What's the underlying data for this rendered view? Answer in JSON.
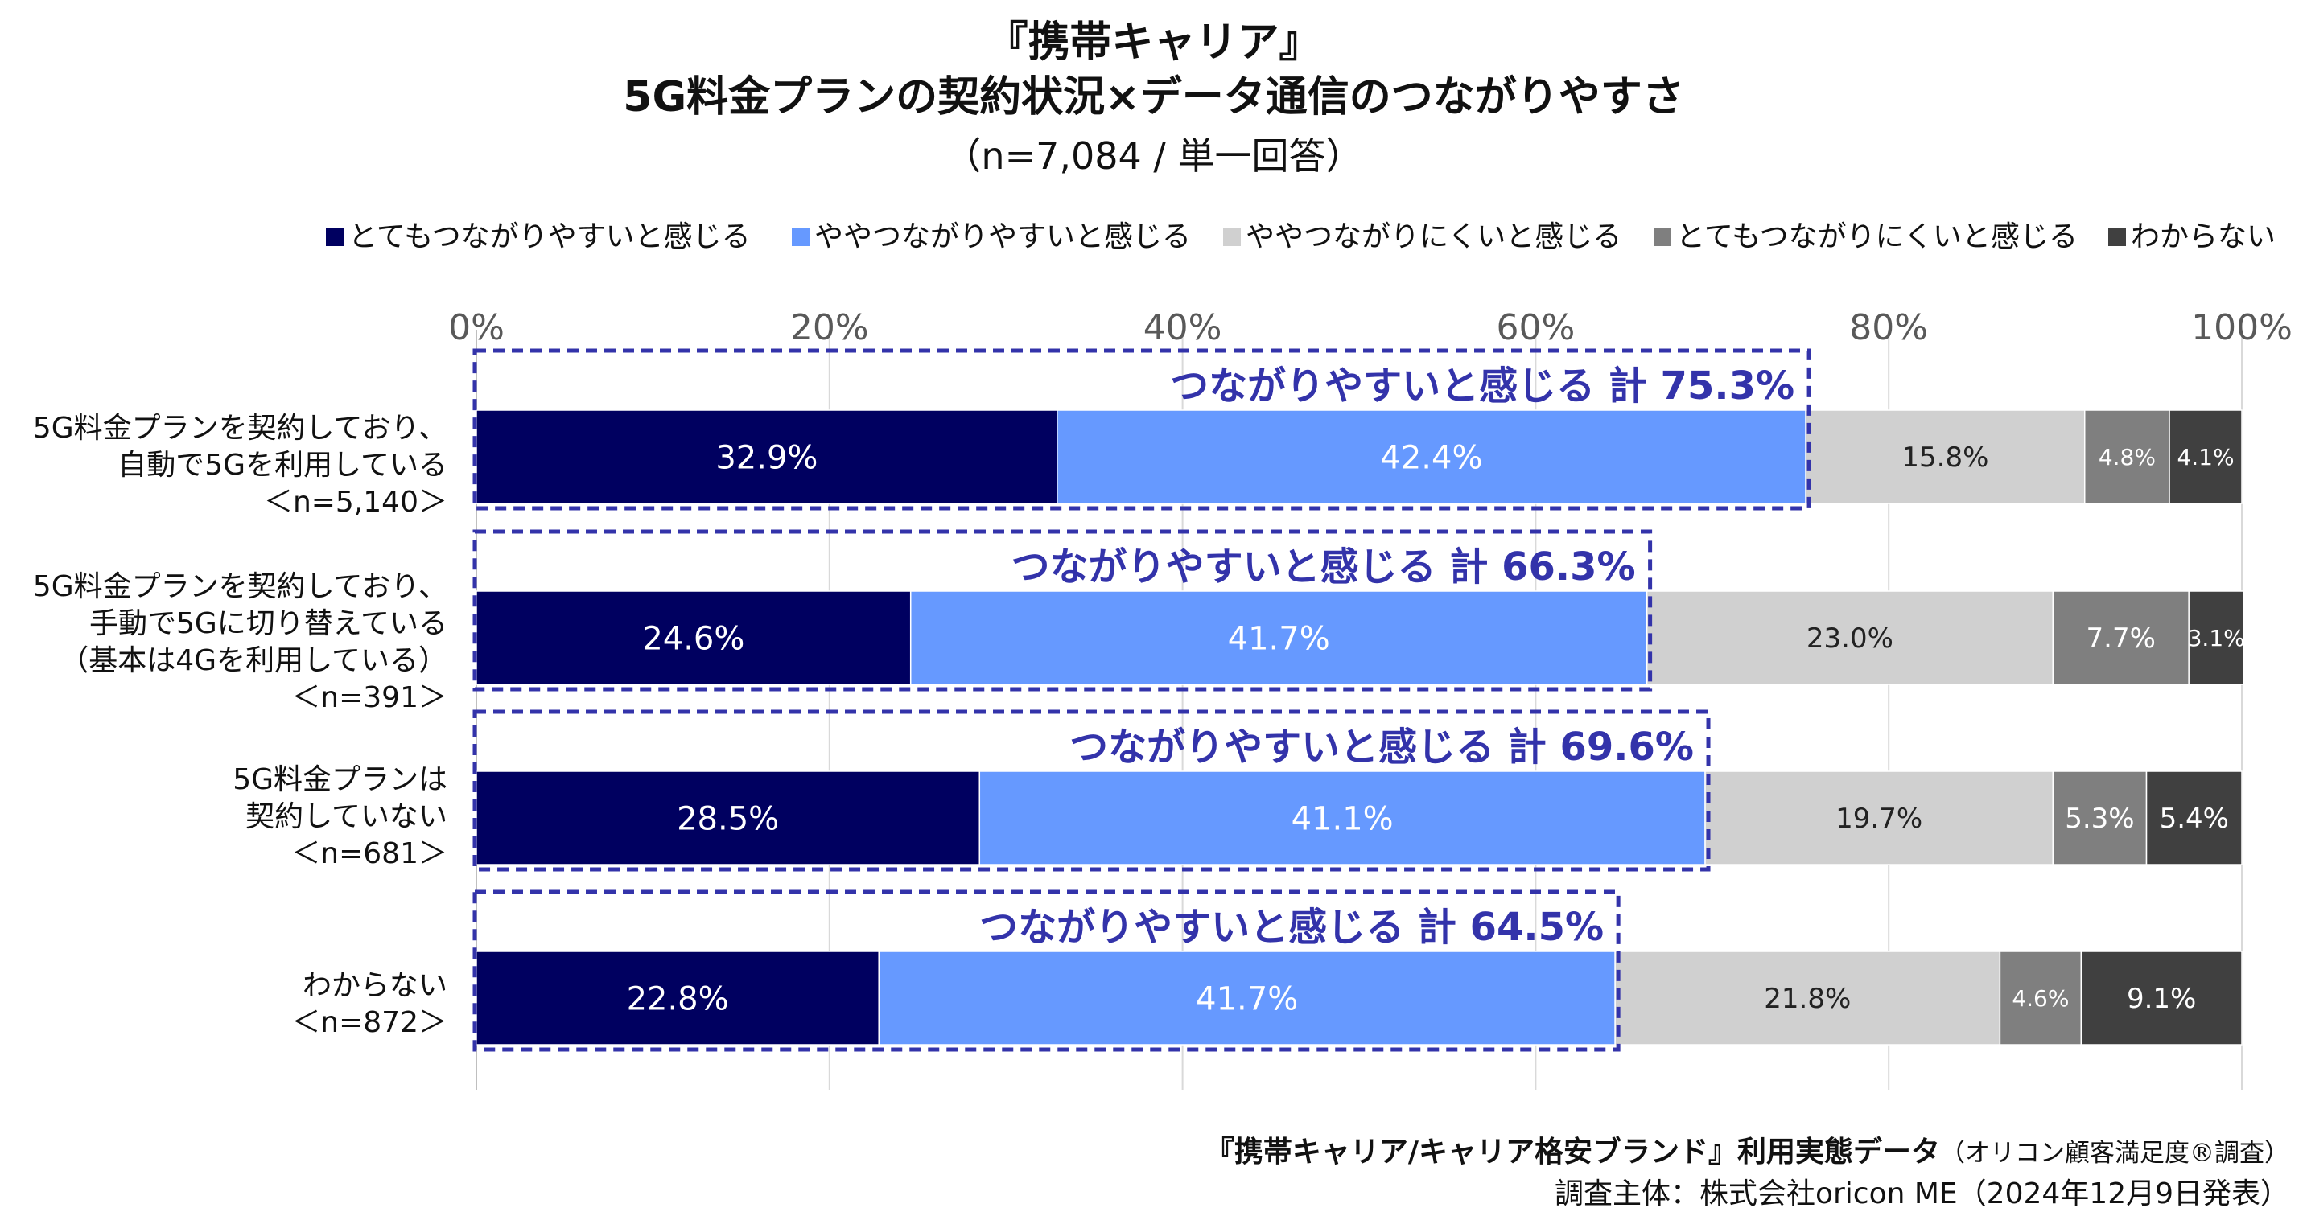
{
  "title": {
    "line1": "『携帯キャリア』",
    "line2": "5G料金プランの契約状況×データ通信のつながりやすさ",
    "line3": "（n=7,084 / 単一回答）"
  },
  "footer": {
    "source_main": "『携帯キャリア/キャリア格安ブランド』利用実態データ",
    "source_sub": "（オリコン顧客満足度®調査）",
    "publisher": "調査主体：株式会社oricon ME（2024年12月9日発表）"
  },
  "colors": {
    "very_easy": "#000060",
    "somewhat_easy": "#6699ff",
    "somewhat_hard": "#d0d0d0",
    "very_hard": "#7f7f7f",
    "unknown": "#404040",
    "highlight": "#3333aa"
  },
  "chart_data": {
    "type": "bar",
    "orientation": "horizontal",
    "stacked": true,
    "xlim": [
      0,
      100
    ],
    "x_ticks": [
      "0%",
      "20%",
      "40%",
      "60%",
      "80%",
      "100%"
    ],
    "grid": true,
    "legend_position": "top",
    "categories": [
      [
        "5G料金プランを契約しており、",
        "自動で5Gを利用している",
        "＜n=5,140＞"
      ],
      [
        "5G料金プランを契約しており、",
        "手動で5Gに切り替えている",
        "（基本は4Gを利用している）",
        "＜n=391＞"
      ],
      [
        "5G料金プランは",
        "契約していない",
        "＜n=681＞"
      ],
      [
        "わからない",
        "＜n=872＞"
      ]
    ],
    "series": [
      {
        "name": "とてもつながりやすいと感じる",
        "values": [
          32.9,
          24.6,
          28.5,
          22.8
        ],
        "labels": [
          "32.9%",
          "24.6%",
          "28.5%",
          "22.8%"
        ]
      },
      {
        "name": "ややつながりやすいと感じる",
        "values": [
          42.4,
          41.7,
          41.1,
          41.7
        ],
        "labels": [
          "42.4%",
          "41.7%",
          "41.1%",
          "41.7%"
        ]
      },
      {
        "name": "ややつながりにくいと感じる",
        "values": [
          15.8,
          23.0,
          19.7,
          21.8
        ],
        "labels": [
          "15.8%",
          "23.0%",
          "19.7%",
          "21.8%"
        ]
      },
      {
        "name": "とてもつながりにくいと感じる",
        "values": [
          4.8,
          7.7,
          5.3,
          4.6
        ],
        "labels": [
          "4.8%",
          "7.7%",
          "5.3%",
          "4.6%"
        ]
      },
      {
        "name": "わからない",
        "values": [
          4.1,
          3.1,
          5.4,
          9.1
        ],
        "labels": [
          "4.1%",
          "3.1%",
          "5.4%",
          "9.1%"
        ]
      }
    ],
    "totals": {
      "values": [
        75.3,
        66.3,
        69.6,
        64.5
      ],
      "labels": [
        "つながりやすいと感じる 計 75.3%",
        "つながりやすいと感じる 計 66.3%",
        "つながりやすいと感じる 計 69.6%",
        "つながりやすいと感じる 計 64.5%"
      ]
    }
  }
}
